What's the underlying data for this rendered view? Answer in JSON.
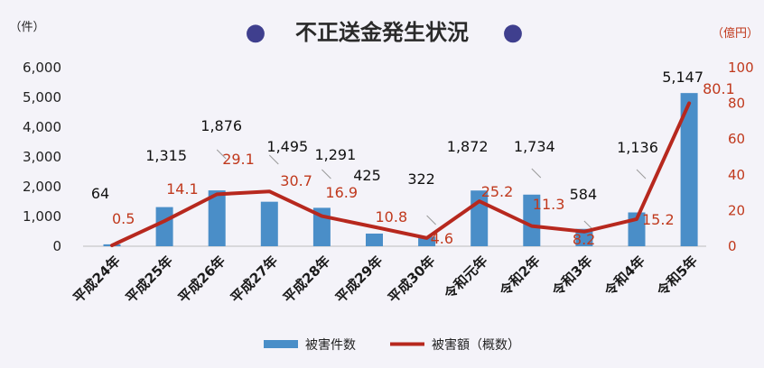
{
  "title": "不正送金発生状況",
  "title_bullet": "●",
  "colors": {
    "bar": "#4a8ec8",
    "line": "#b7281e",
    "line_label": "#c0391d",
    "accent": "#3f3f8e"
  },
  "chart_data": {
    "type": "bar",
    "categories": [
      "平成24年",
      "平成25年",
      "平成26年",
      "平成27年",
      "平成28年",
      "平成29年",
      "平成30年",
      "令和元年",
      "令和2年",
      "令和3年",
      "令和4年",
      "令和5年"
    ],
    "series": [
      {
        "name": "被害件数",
        "type": "bar",
        "axis": "left",
        "values": [
          64,
          1315,
          1876,
          1495,
          1291,
          425,
          322,
          1872,
          1734,
          584,
          1136,
          5147
        ],
        "labels": [
          "64",
          "1,315",
          "1,876",
          "1,495",
          "1,291",
          "425",
          "322",
          "1,872",
          "1,734",
          "584",
          "1,136",
          "5,147"
        ]
      },
      {
        "name": "被害額（概数）",
        "type": "line",
        "axis": "right",
        "values": [
          0.5,
          14.1,
          29.1,
          30.7,
          16.9,
          10.8,
          4.6,
          25.2,
          11.3,
          8.2,
          15.2,
          80.1
        ],
        "labels": [
          "0.5",
          "14.1",
          "29.1",
          "30.7",
          "16.9",
          "10.8",
          "4.6",
          "25.2",
          "11.3",
          "8.2",
          "15.2",
          "80.1"
        ]
      }
    ],
    "y_left": {
      "label": "（件）",
      "ylim": [
        0,
        6000
      ],
      "ticks": [
        "0",
        "1,000",
        "2,000",
        "3,000",
        "4,000",
        "5,000",
        "6,000"
      ]
    },
    "y_right": {
      "label": "（億円）",
      "ylim": [
        0,
        100
      ],
      "ticks": [
        "0",
        "20",
        "40",
        "60",
        "80",
        "100"
      ]
    },
    "grid": false,
    "legend": {
      "placement": "bottom",
      "entries": [
        "被害件数",
        "被害額（概数）"
      ]
    }
  }
}
